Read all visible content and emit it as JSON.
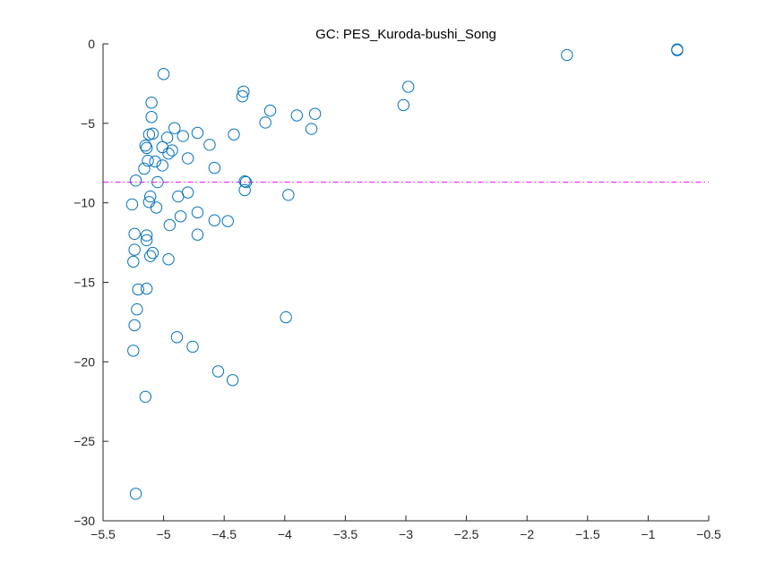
{
  "chart_data": {
    "type": "scatter",
    "title": "GC: PES_Kuroda-bushi_Song",
    "xlabel": "",
    "ylabel": "",
    "xlim": [
      -5.5,
      -0.5
    ],
    "ylim": [
      -30,
      0
    ],
    "xticks": [
      -5.5,
      -5,
      -4.5,
      -4,
      -3.5,
      -3,
      -2.5,
      -2,
      -1.5,
      -1,
      -0.5
    ],
    "xtick_labels": [
      "−5.5",
      "−5",
      "−4.5",
      "−4",
      "−3.5",
      "−3",
      "−2.5",
      "−2",
      "−1.5",
      "−1",
      "−0.5"
    ],
    "yticks": [
      0,
      -5,
      -10,
      -15,
      -20,
      -25,
      -30
    ],
    "ytick_labels": [
      "0",
      "−5",
      "−10",
      "−15",
      "−20",
      "−25",
      "−30"
    ],
    "grid": false,
    "marker_color": "#0072BD",
    "reference_line": {
      "y": -8.7,
      "color": "#FF00FF",
      "style": "dash-dot"
    },
    "points": [
      {
        "x": -5.0,
        "y": -1.9
      },
      {
        "x": -4.34,
        "y": -3.0
      },
      {
        "x": -4.35,
        "y": -3.3
      },
      {
        "x": -5.1,
        "y": -3.7
      },
      {
        "x": -4.12,
        "y": -4.2
      },
      {
        "x": -3.9,
        "y": -4.5
      },
      {
        "x": -3.75,
        "y": -4.4
      },
      {
        "x": -5.1,
        "y": -4.6
      },
      {
        "x": -4.16,
        "y": -4.95
      },
      {
        "x": -3.78,
        "y": -5.35
      },
      {
        "x": -4.91,
        "y": -5.3
      },
      {
        "x": -5.12,
        "y": -5.7
      },
      {
        "x": -5.09,
        "y": -5.65
      },
      {
        "x": -4.72,
        "y": -5.6
      },
      {
        "x": -4.42,
        "y": -5.7
      },
      {
        "x": -4.84,
        "y": -5.8
      },
      {
        "x": -4.97,
        "y": -5.9
      },
      {
        "x": -4.62,
        "y": -6.35
      },
      {
        "x": -5.15,
        "y": -6.4
      },
      {
        "x": -5.14,
        "y": -6.55
      },
      {
        "x": -5.01,
        "y": -6.5
      },
      {
        "x": -4.93,
        "y": -6.7
      },
      {
        "x": -4.96,
        "y": -6.9
      },
      {
        "x": -4.8,
        "y": -7.2
      },
      {
        "x": -5.13,
        "y": -7.35
      },
      {
        "x": -5.07,
        "y": -7.4
      },
      {
        "x": -5.01,
        "y": -7.65
      },
      {
        "x": -4.58,
        "y": -7.8
      },
      {
        "x": -5.16,
        "y": -7.85
      },
      {
        "x": -5.23,
        "y": -8.6
      },
      {
        "x": -5.05,
        "y": -8.7
      },
      {
        "x": -4.33,
        "y": -8.65
      },
      {
        "x": -4.32,
        "y": -8.7
      },
      {
        "x": -4.33,
        "y": -9.2
      },
      {
        "x": -4.8,
        "y": -9.35
      },
      {
        "x": -5.11,
        "y": -9.6
      },
      {
        "x": -4.88,
        "y": -9.6
      },
      {
        "x": -3.97,
        "y": -9.5
      },
      {
        "x": -5.12,
        "y": -9.95
      },
      {
        "x": -5.26,
        "y": -10.1
      },
      {
        "x": -5.06,
        "y": -10.3
      },
      {
        "x": -4.72,
        "y": -10.6
      },
      {
        "x": -4.86,
        "y": -10.85
      },
      {
        "x": -4.58,
        "y": -11.1
      },
      {
        "x": -4.47,
        "y": -11.15
      },
      {
        "x": -4.95,
        "y": -11.4
      },
      {
        "x": -4.72,
        "y": -12.0
      },
      {
        "x": -5.24,
        "y": -11.95
      },
      {
        "x": -5.14,
        "y": -12.05
      },
      {
        "x": -5.14,
        "y": -12.35
      },
      {
        "x": -5.24,
        "y": -12.95
      },
      {
        "x": -5.09,
        "y": -13.15
      },
      {
        "x": -5.11,
        "y": -13.35
      },
      {
        "x": -4.96,
        "y": -13.55
      },
      {
        "x": -5.25,
        "y": -13.7
      },
      {
        "x": -5.21,
        "y": -15.45
      },
      {
        "x": -5.14,
        "y": -15.4
      },
      {
        "x": -5.22,
        "y": -16.7
      },
      {
        "x": -3.99,
        "y": -17.2
      },
      {
        "x": -5.24,
        "y": -17.7
      },
      {
        "x": -4.89,
        "y": -18.45
      },
      {
        "x": -4.76,
        "y": -19.05
      },
      {
        "x": -5.25,
        "y": -19.3
      },
      {
        "x": -4.55,
        "y": -20.6
      },
      {
        "x": -4.43,
        "y": -21.15
      },
      {
        "x": -5.15,
        "y": -22.2
      },
      {
        "x": -5.23,
        "y": -28.3
      },
      {
        "x": -3.02,
        "y": -3.85
      },
      {
        "x": -2.98,
        "y": -2.7
      },
      {
        "x": -1.67,
        "y": -0.7
      },
      {
        "x": -0.76,
        "y": -0.35
      },
      {
        "x": -0.76,
        "y": -0.4
      }
    ]
  }
}
